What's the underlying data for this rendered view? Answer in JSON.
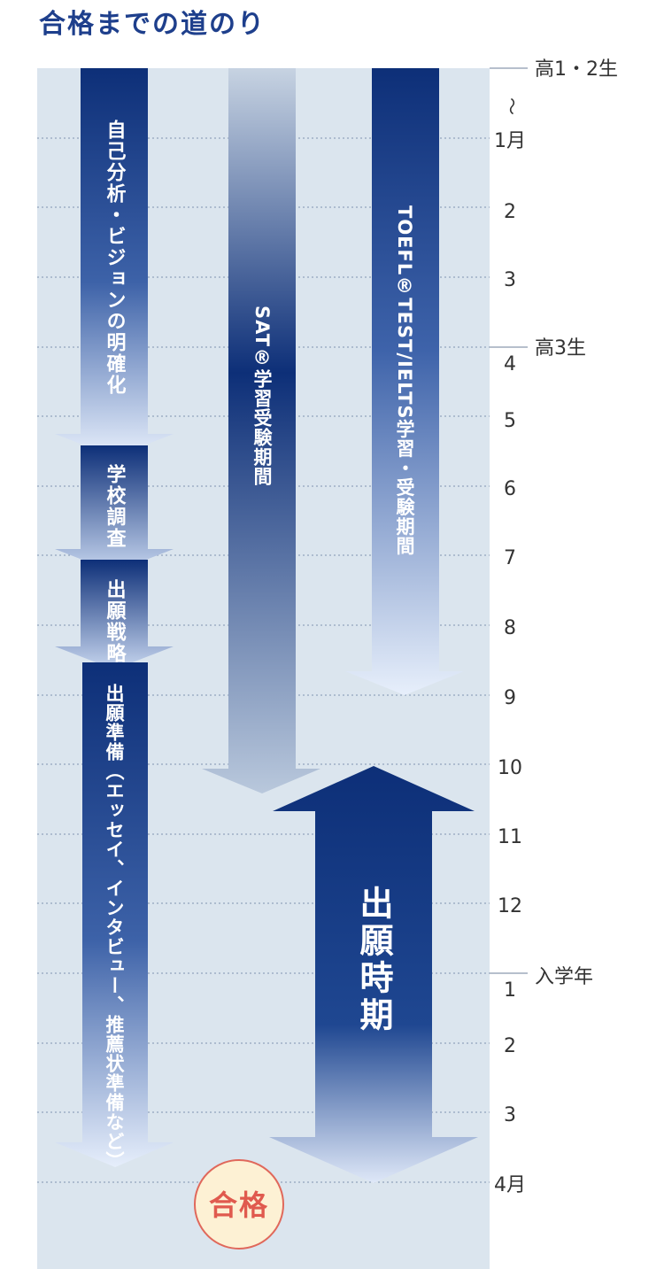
{
  "title": "合格までの道のり",
  "timeline": {
    "grade_labels": [
      "高1・2生",
      "高3生",
      "入学年"
    ],
    "tilde": "～",
    "months": [
      "1月",
      "2",
      "3",
      "4",
      "5",
      "6",
      "7",
      "8",
      "9",
      "10",
      "11",
      "12",
      "1",
      "2",
      "3",
      "4月"
    ]
  },
  "tracks": {
    "phase1": "自己分析・ビジョンの明確化",
    "phase2": "学校調査",
    "phase3": "出願戦略",
    "phase4": "出願準備（エッセイ、インタビュー、推薦状準備など）",
    "sat": "SAT®学習受験期間",
    "toefl": "TOEFL®TEST/IELTS学習・受験期間",
    "application": "出願時期"
  },
  "goal_label": "合格",
  "colors": {
    "navy": "#0d2f78",
    "background": "#dbe5ee",
    "goal_text": "#e05a4e",
    "goal_fill": "#fdf1d4",
    "title": "#1e3f8c"
  }
}
